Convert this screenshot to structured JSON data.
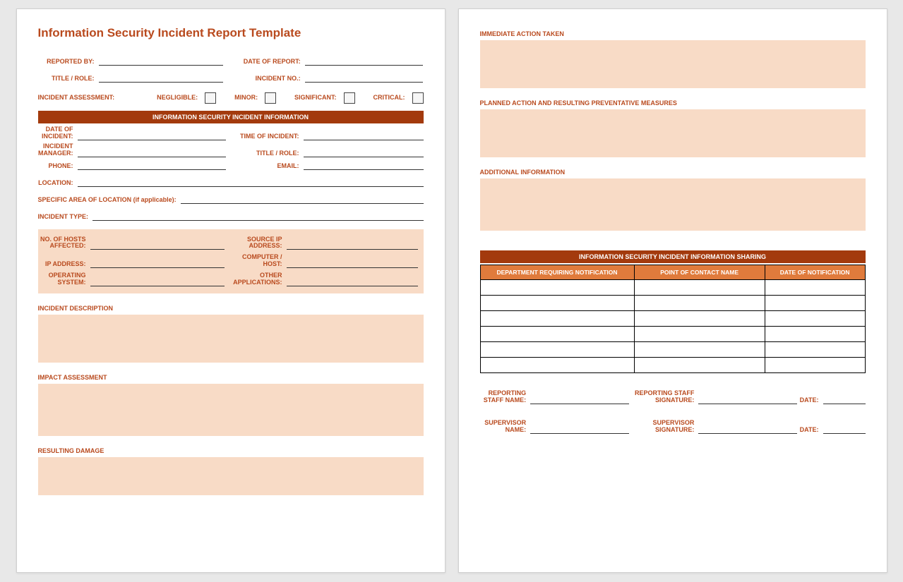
{
  "title": "Information Security Incident Report Template",
  "header": {
    "reported_by": "REPORTED BY:",
    "date_of_report": "DATE OF REPORT:",
    "title_role": "TITLE / ROLE:",
    "incident_no": "INCIDENT NO.:"
  },
  "assessment": {
    "label": "INCIDENT ASSESSMENT:",
    "negligible": "NEGLIGIBLE:",
    "minor": "MINOR:",
    "significant": "SIGNIFICANT:",
    "critical": "CRITICAL:"
  },
  "section1_bar": "INFORMATION SECURITY INCIDENT INFORMATION",
  "info": {
    "date_of_incident": "DATE OF INCIDENT:",
    "time_of_incident": "TIME OF INCIDENT:",
    "incident_manager": "INCIDENT MANAGER:",
    "title_role": "TITLE / ROLE:",
    "phone": "PHONE:",
    "email": "EMAIL:",
    "location": "LOCATION:",
    "specific_area": "SPECIFIC AREA OF LOCATION (if applicable):",
    "incident_type": "INCIDENT TYPE:"
  },
  "tech": {
    "hosts_affected": "NO. OF HOSTS AFFECTED:",
    "source_ip": "SOURCE IP ADDRESS:",
    "ip_address": "IP ADDRESS:",
    "computer_host": "COMPUTER / HOST:",
    "operating_system": "OPERATING SYSTEM:",
    "other_apps": "OTHER APPLICATIONS:"
  },
  "sections": {
    "incident_description": "INCIDENT DESCRIPTION",
    "impact_assessment": "IMPACT ASSESSMENT",
    "resulting_damage": "RESULTING DAMAGE",
    "immediate_action": "IMMEDIATE ACTION TAKEN",
    "planned_action": "PLANNED ACTION AND RESULTING PREVENTATIVE MEASURES",
    "additional_info": "ADDITIONAL INFORMATION"
  },
  "sharing_bar": "INFORMATION SECURITY INCIDENT INFORMATION SHARING",
  "table_headers": {
    "dept": "DEPARTMENT REQUIRING NOTIFICATION",
    "poc": "POINT OF CONTACT NAME",
    "date": "DATE OF NOTIFICATION"
  },
  "table_rows": 6,
  "signatures": {
    "reporting_staff_name": "REPORTING STAFF NAME:",
    "reporting_staff_sig": "REPORTING STAFF SIGNATURE:",
    "date": "DATE:",
    "supervisor_name": "SUPERVISOR NAME:",
    "supervisor_sig": "SUPERVISOR SIGNATURE:"
  },
  "colors": {
    "accent": "#b94a1e",
    "bar_dark": "#a33a0d",
    "bar_orange": "#e07b3c",
    "shade": "#f8dbc6"
  }
}
